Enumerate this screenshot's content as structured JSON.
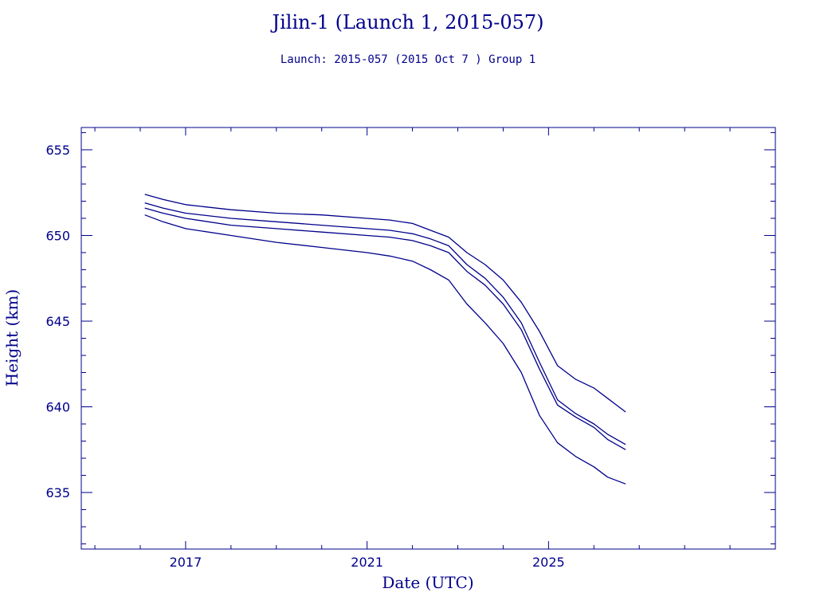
{
  "colors": {
    "line": "#00008b",
    "axis": "#00008b",
    "background": "#ffffff"
  },
  "chart_data": {
    "type": "line",
    "title": "Jilin-1 (Launch 1, 2015-057)",
    "subtitle": "Launch: 2015-057  (2015 Oct  7 )  Group 1",
    "xlabel": "Date (UTC)",
    "ylabel": "Height (km)",
    "xlim": [
      2014.7,
      2030.0
    ],
    "ylim": [
      631.7,
      656.3
    ],
    "xticks": [
      2017,
      2021,
      2025
    ],
    "xtick_labels": [
      "2017",
      "2021",
      "2025"
    ],
    "yticks": [
      635,
      640,
      645,
      650,
      655
    ],
    "ytick_labels": [
      "635",
      "640",
      "645",
      "650",
      "655"
    ],
    "grid": false,
    "legend": "none",
    "series": [
      {
        "x": [
          2016.1,
          2016.5,
          2017.0,
          2018.0,
          2019.0,
          2020.0,
          2021.0,
          2021.5,
          2022.0,
          2022.4,
          2022.8,
          2023.2,
          2023.6,
          2024.0,
          2024.4,
          2024.8,
          2025.2,
          2025.6,
          2026.0,
          2026.3,
          2026.7
        ],
        "y": [
          652.4,
          652.1,
          651.8,
          651.5,
          651.3,
          651.2,
          651.0,
          650.9,
          650.7,
          650.3,
          649.9,
          649.0,
          648.3,
          647.4,
          646.1,
          644.4,
          642.4,
          641.6,
          641.1,
          640.5,
          639.7
        ]
      },
      {
        "x": [
          2016.1,
          2016.5,
          2017.0,
          2018.0,
          2019.0,
          2020.0,
          2021.0,
          2021.5,
          2022.0,
          2022.4,
          2022.8,
          2023.2,
          2023.6,
          2024.0,
          2024.4,
          2024.8,
          2025.2,
          2025.6,
          2026.0,
          2026.3,
          2026.7
        ],
        "y": [
          651.9,
          651.6,
          651.3,
          651.0,
          650.8,
          650.6,
          650.4,
          650.3,
          650.1,
          649.8,
          649.4,
          648.3,
          647.5,
          646.4,
          644.9,
          642.6,
          640.4,
          639.6,
          639.0,
          638.4,
          637.8
        ]
      },
      {
        "x": [
          2016.1,
          2016.5,
          2017.0,
          2018.0,
          2019.0,
          2020.0,
          2021.0,
          2021.5,
          2022.0,
          2022.4,
          2022.8,
          2023.2,
          2023.6,
          2024.0,
          2024.4,
          2024.8,
          2025.2,
          2025.6,
          2026.0,
          2026.3,
          2026.7
        ],
        "y": [
          651.6,
          651.3,
          651.0,
          650.6,
          650.4,
          650.2,
          650.0,
          649.9,
          649.7,
          649.4,
          649.0,
          647.9,
          647.1,
          646.0,
          644.5,
          642.2,
          640.1,
          639.4,
          638.8,
          638.1,
          637.5
        ]
      },
      {
        "x": [
          2016.1,
          2016.5,
          2017.0,
          2018.0,
          2019.0,
          2020.0,
          2021.0,
          2021.5,
          2022.0,
          2022.4,
          2022.8,
          2023.2,
          2023.6,
          2024.0,
          2024.4,
          2024.8,
          2025.2,
          2025.6,
          2026.0,
          2026.3,
          2026.7
        ],
        "y": [
          651.2,
          650.8,
          650.4,
          650.0,
          649.6,
          649.3,
          649.0,
          648.8,
          648.5,
          648.0,
          647.4,
          646.0,
          644.9,
          643.7,
          642.0,
          639.5,
          637.9,
          637.1,
          636.5,
          635.9,
          635.5
        ]
      }
    ]
  }
}
